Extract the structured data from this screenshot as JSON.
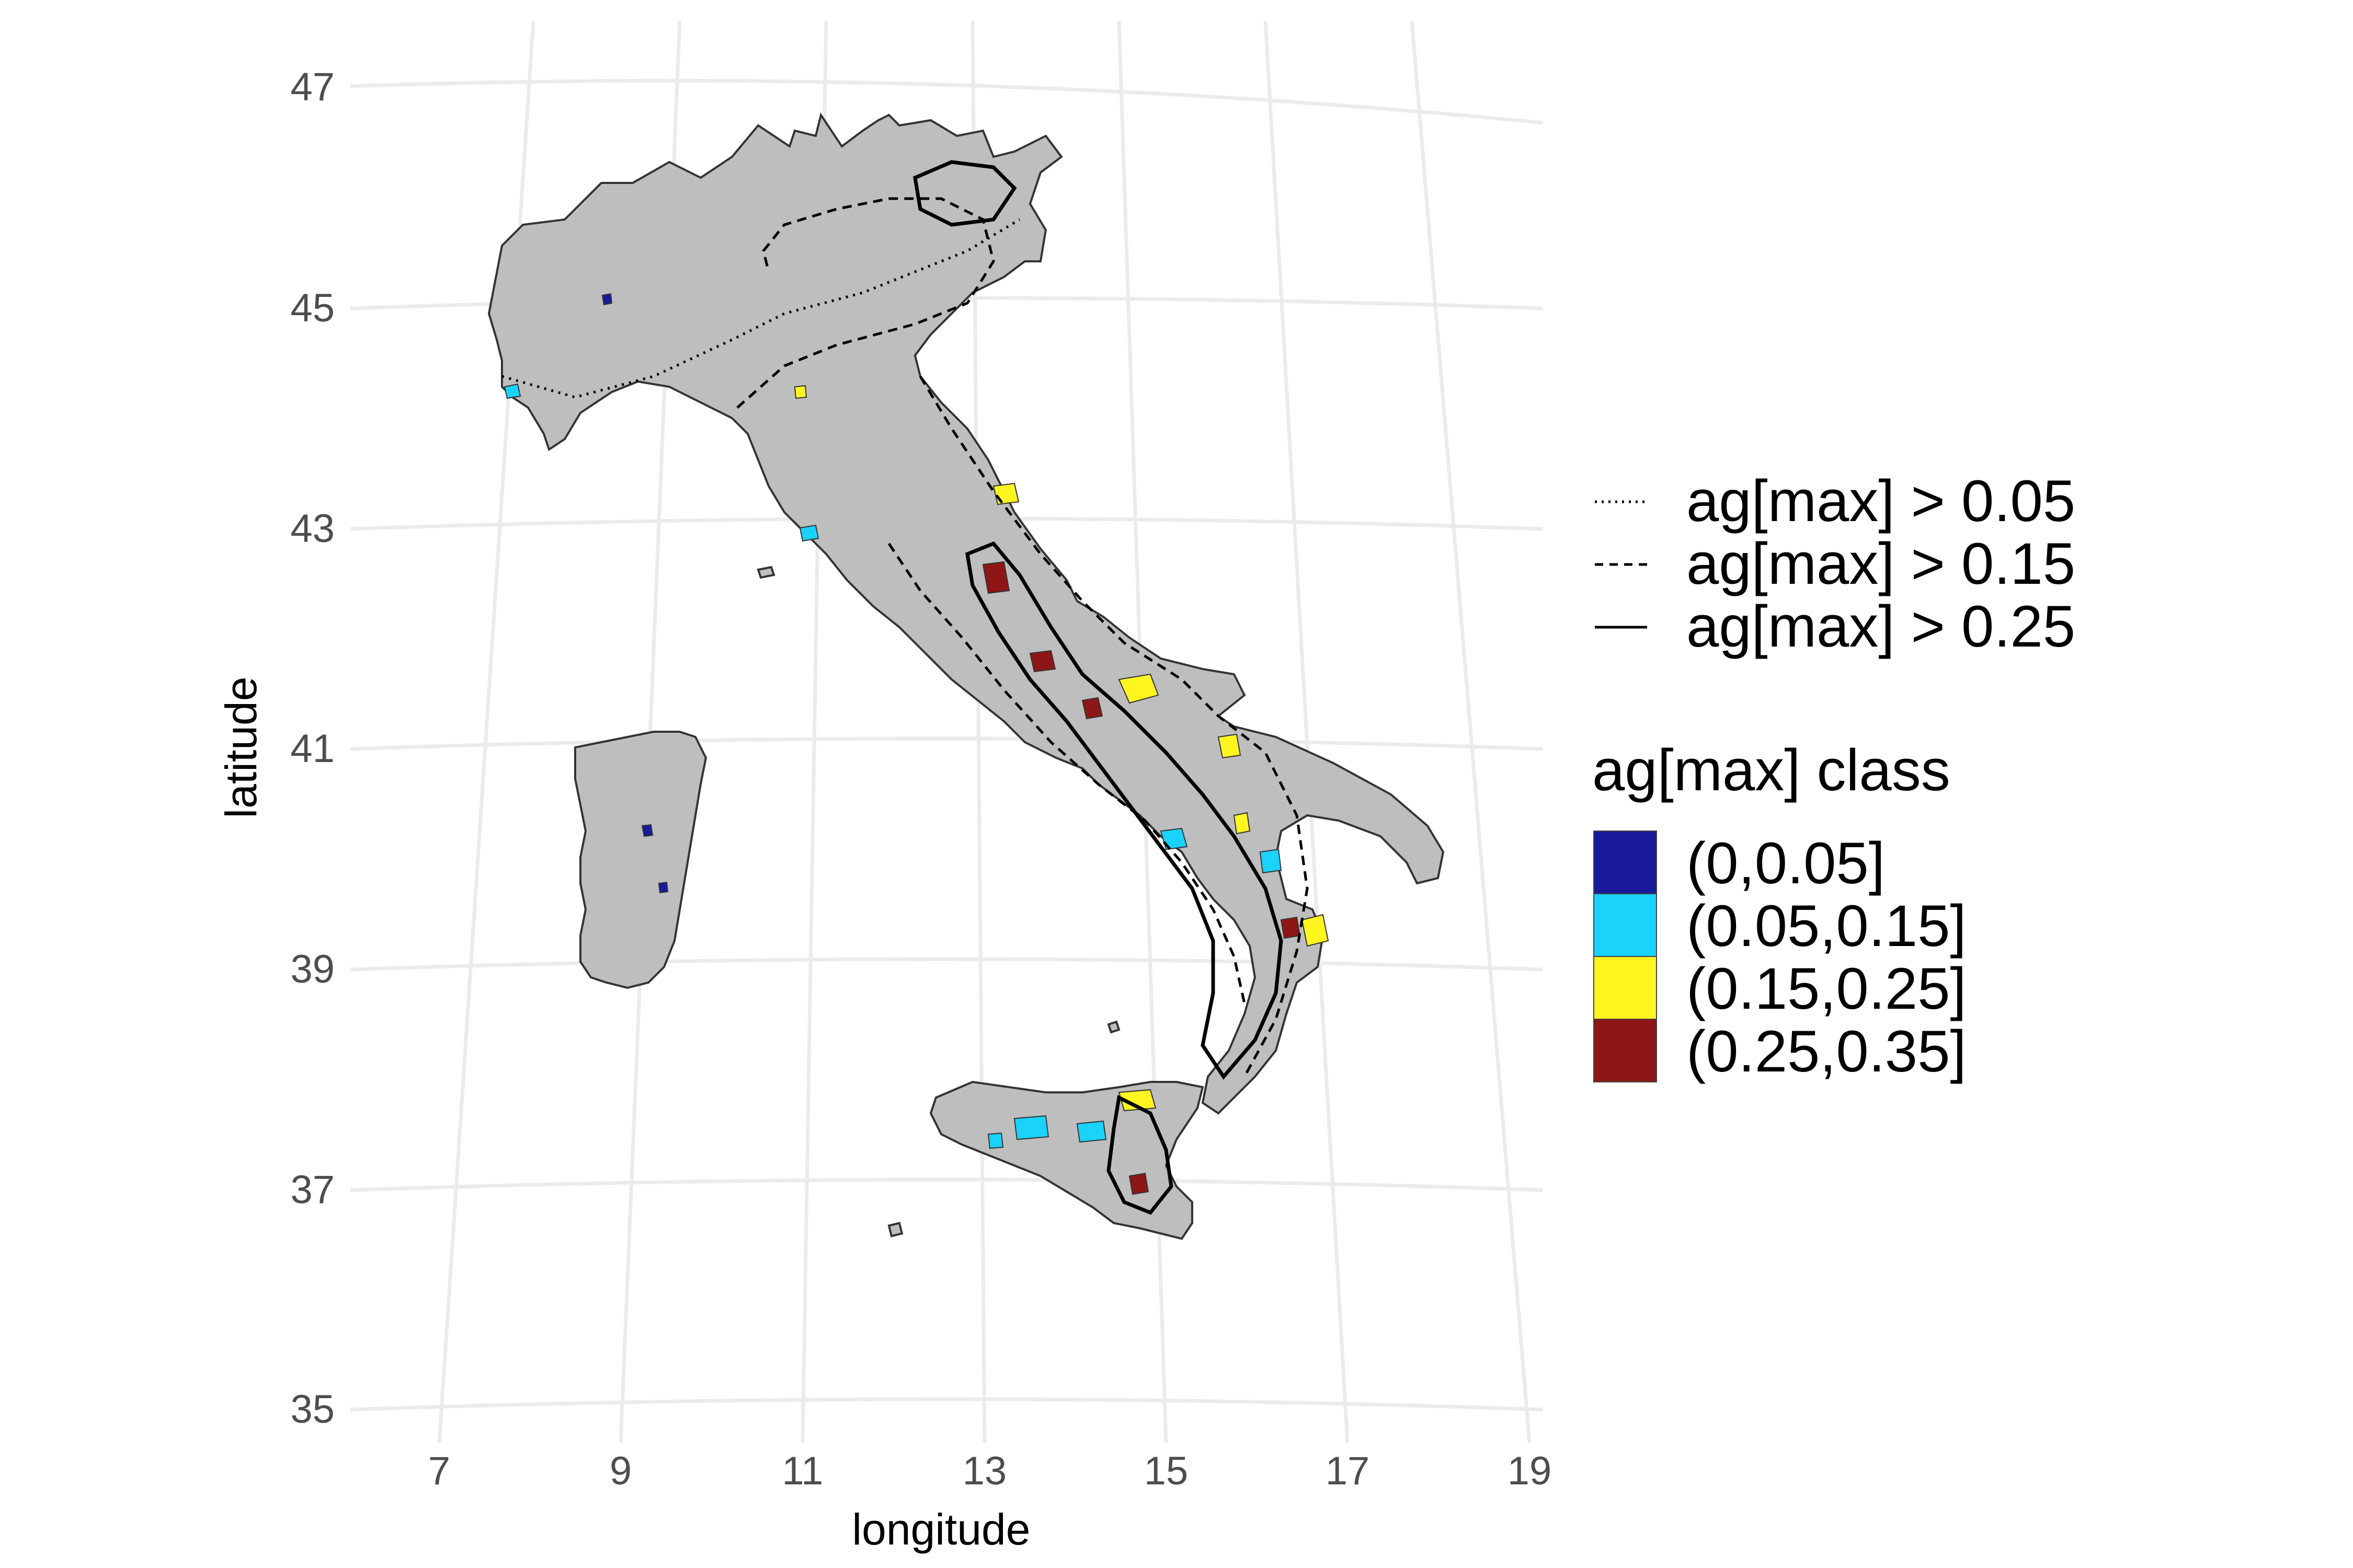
{
  "axes": {
    "x_label": "longitude",
    "y_label": "latitude",
    "x_ticks": [
      "7",
      "9",
      "11",
      "13",
      "15",
      "17",
      "19"
    ],
    "y_ticks": [
      "47",
      "45",
      "43",
      "41",
      "39",
      "37",
      "35"
    ],
    "x_range": [
      7,
      19
    ],
    "y_range": [
      35,
      47
    ],
    "grid": true
  },
  "colors": {
    "land": "#bebebe",
    "borders": "#333333",
    "grid": "#ebebeb"
  },
  "legend_lines": {
    "items": [
      {
        "label": "ag[max] > 0.05",
        "linetype": "dotted"
      },
      {
        "label": "ag[max] > 0.15",
        "linetype": "dashed"
      },
      {
        "label": "ag[max] > 0.25",
        "linetype": "solid"
      }
    ]
  },
  "legend_fill": {
    "title": "ag[max] class",
    "items": [
      {
        "label": "(0,0.05]",
        "color": "#1a1a9c"
      },
      {
        "label": "(0.05,0.15]",
        "color": "#19d3fb"
      },
      {
        "label": "(0.15,0.25]",
        "color": "#fff51f"
      },
      {
        "label": "(0.25,0.35]",
        "color": "#8f1616"
      }
    ]
  }
}
